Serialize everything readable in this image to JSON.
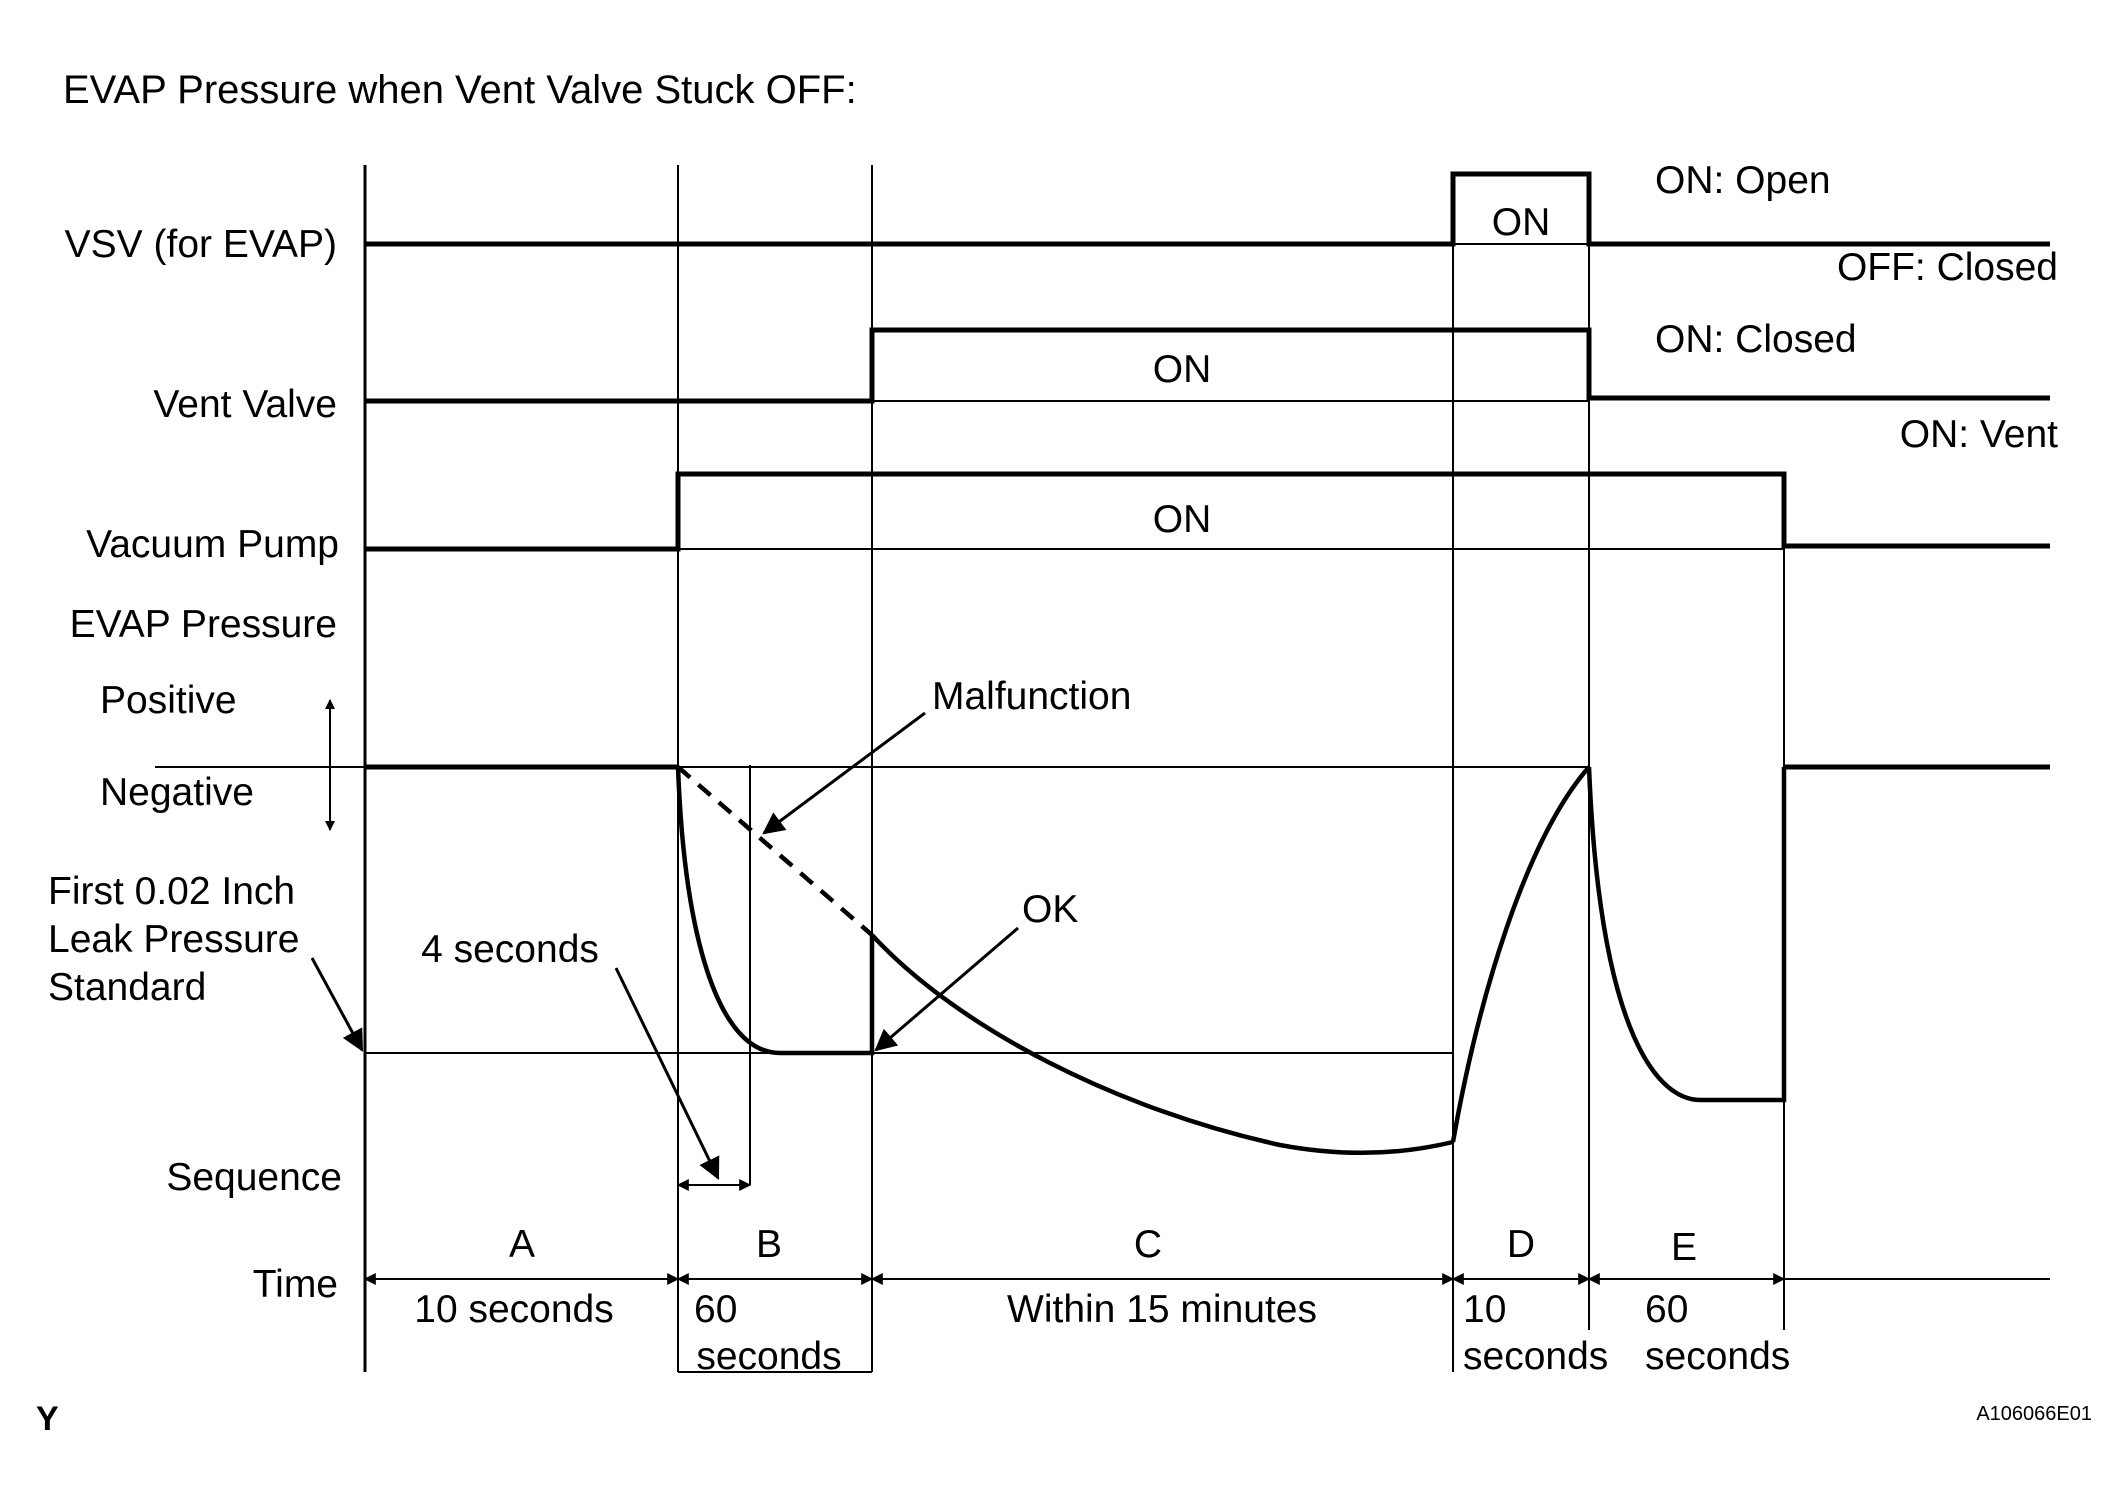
{
  "title": "EVAP Pressure when Vent Valve Stuck OFF:",
  "signals": {
    "vsv": {
      "label": "VSV (for EVAP)",
      "pulse_label": "ON",
      "on_state": "ON: Open",
      "off_state": "OFF: Closed"
    },
    "vent_valve": {
      "label": "Vent Valve",
      "pulse_label": "ON",
      "on_state": "ON: Closed",
      "off_state": "ON: Vent"
    },
    "vacuum_pump": {
      "label": "Vacuum Pump",
      "pulse_label": "ON"
    }
  },
  "pressure": {
    "label": "EVAP Pressure",
    "positive": "Positive",
    "negative": "Negative",
    "reference_label": [
      "First 0.02 Inch",
      "Leak Pressure",
      "Standard"
    ],
    "four_seconds": "4 seconds",
    "malfunction": "Malfunction",
    "ok": "OK"
  },
  "sequence": {
    "label": "Sequence",
    "time_label": "Time",
    "steps": [
      {
        "id": "A",
        "duration": [
          "10 seconds"
        ]
      },
      {
        "id": "B",
        "duration": [
          "60",
          "seconds"
        ]
      },
      {
        "id": "C",
        "duration": [
          "Within 15 minutes"
        ]
      },
      {
        "id": "D",
        "duration": [
          "10",
          "seconds"
        ]
      },
      {
        "id": "E",
        "duration": [
          "60",
          "seconds"
        ]
      }
    ]
  },
  "corner_mark": "Y",
  "figure_code": "A106066E01"
}
